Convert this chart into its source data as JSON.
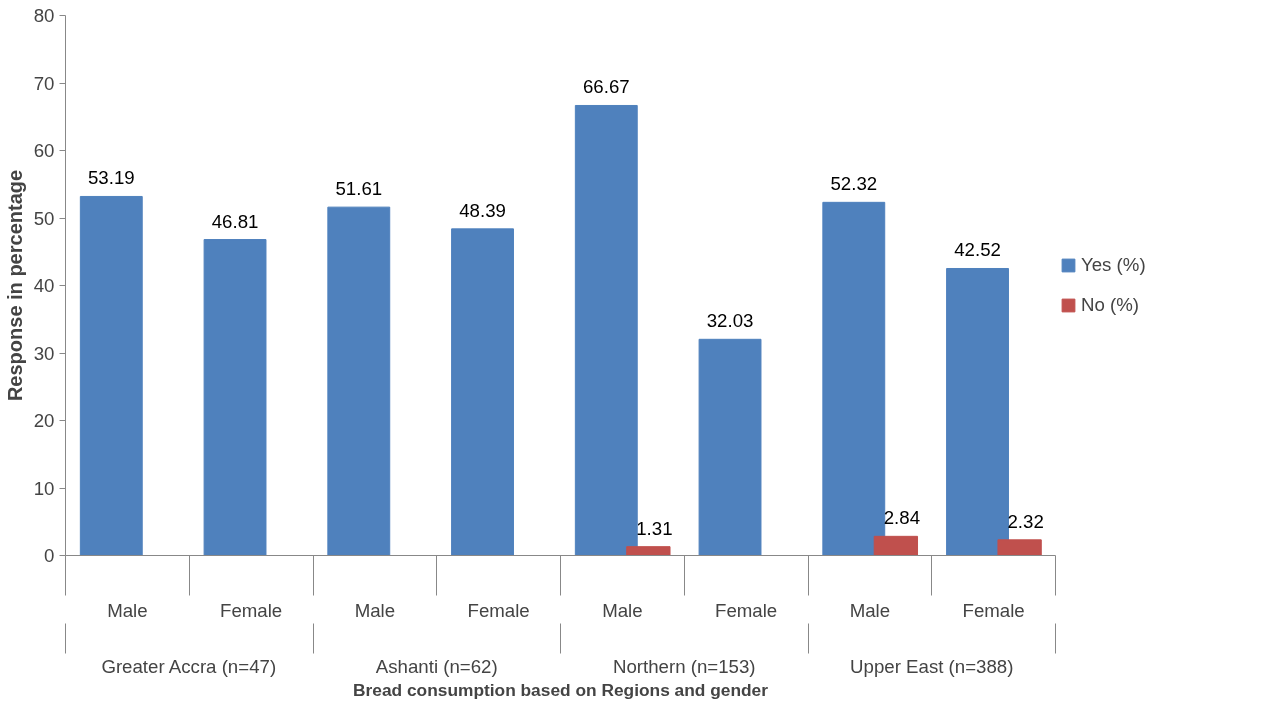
{
  "chart_data": {
    "type": "bar",
    "xlabel": "Bread consumption based on Regions and gender",
    "ylabel": "Response in percentage",
    "categories": [
      "Male",
      "Female",
      "Male",
      "Female",
      "Male",
      "Female",
      "Male",
      "Female"
    ],
    "annotations": [
      "Greater Accra (n=47)",
      "Ashanti (n=62)",
      "Northern (n=153)",
      "Upper East (n=388)"
    ],
    "series": [
      {
        "name": "Yes (%)",
        "color": "#4f81bd",
        "values": [
          53.19,
          46.81,
          51.61,
          48.39,
          66.67,
          32.03,
          52.32,
          42.52
        ]
      },
      {
        "name": "No (%)",
        "color": "#c0504d",
        "values": [
          null,
          null,
          null,
          null,
          1.31,
          null,
          2.84,
          2.32
        ]
      }
    ],
    "ylim": [
      0,
      80
    ],
    "yticks": [
      0,
      10,
      20,
      30,
      40,
      50,
      60,
      70,
      80
    ],
    "grid": false,
    "legend": "right",
    "data_labels": true
  }
}
